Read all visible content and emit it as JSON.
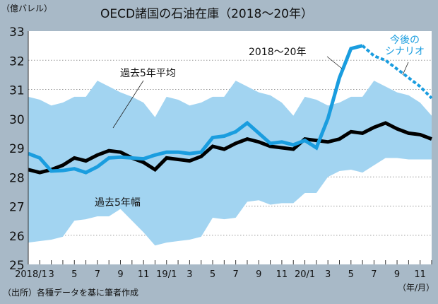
{
  "chart_data": {
    "type": "line",
    "title": "OECD諸国の石油在庫（2018〜20年）",
    "ylabel": "（億バレル）",
    "xlabel": "（年/月）",
    "source": "（出所）各種データを基に筆者作成",
    "ylim": [
      25,
      33
    ],
    "yticks": [
      25,
      26,
      27,
      28,
      29,
      30,
      31,
      32,
      33
    ],
    "grid": true,
    "x_tick_labels": [
      "2018/1",
      "3",
      "5",
      "7",
      "9",
      "11",
      "19/1",
      "3",
      "5",
      "7",
      "9",
      "11",
      "20/1",
      "3",
      "5",
      "7",
      "9",
      "11"
    ],
    "months": [
      "2018/1",
      "2018/2",
      "2018/3",
      "2018/4",
      "2018/5",
      "2018/6",
      "2018/7",
      "2018/8",
      "2018/9",
      "2018/10",
      "2018/11",
      "2018/12",
      "2019/1",
      "2019/2",
      "2019/3",
      "2019/4",
      "2019/5",
      "2019/6",
      "2019/7",
      "2019/8",
      "2019/9",
      "2019/10",
      "2019/11",
      "2019/12",
      "2020/1",
      "2020/2",
      "2020/3",
      "2020/4",
      "2020/5",
      "2020/6",
      "2020/7",
      "2020/8",
      "2020/9",
      "2020/10",
      "2020/11",
      "2020/12"
    ],
    "band": {
      "name": "過去5年幅",
      "color": "#a2d4f1",
      "upper": [
        30.75,
        30.65,
        30.45,
        30.55,
        30.75,
        30.75,
        31.3,
        31.1,
        30.9,
        30.75,
        30.55,
        30.05,
        30.75,
        30.65,
        30.45,
        30.55,
        30.75,
        30.75,
        31.3,
        31.1,
        30.9,
        30.8,
        30.55,
        30.1,
        30.75,
        30.65,
        30.45,
        30.55,
        30.75,
        30.75,
        31.3,
        31.1,
        30.9,
        30.8,
        30.55,
        30.1
      ],
      "lower": [
        25.75,
        25.8,
        25.85,
        25.95,
        26.5,
        26.55,
        26.65,
        26.65,
        26.9,
        26.5,
        26.1,
        25.65,
        25.75,
        25.8,
        25.85,
        25.95,
        26.6,
        26.55,
        26.6,
        27.15,
        27.2,
        27.05,
        27.1,
        27.1,
        27.45,
        27.45,
        28.0,
        28.2,
        28.25,
        28.15,
        28.4,
        28.65,
        28.65,
        28.6,
        28.6,
        28.6
      ]
    },
    "series": [
      {
        "name": "過去5年平均",
        "color": "#000000",
        "values": [
          28.25,
          28.15,
          28.25,
          28.4,
          28.65,
          28.55,
          28.75,
          28.9,
          28.85,
          28.65,
          28.5,
          28.25,
          28.65,
          28.6,
          28.55,
          28.7,
          29.05,
          28.95,
          29.15,
          29.3,
          29.2,
          29.05,
          29.0,
          28.95,
          29.3,
          29.25,
          29.2,
          29.3,
          29.55,
          29.5,
          29.7,
          29.85,
          29.65,
          29.5,
          29.45,
          29.3
        ]
      },
      {
        "name": "2018〜20年",
        "color": "#1a9ddf",
        "values": [
          28.8,
          28.65,
          28.2,
          28.22,
          28.28,
          28.15,
          28.35,
          28.65,
          28.68,
          28.65,
          28.62,
          28.75,
          28.85,
          28.85,
          28.8,
          28.85,
          29.35,
          29.4,
          29.55,
          29.85,
          29.5,
          29.15,
          29.2,
          29.1,
          29.25,
          29.0,
          30.0,
          31.4,
          32.4,
          32.5,
          null,
          null,
          null,
          null,
          null,
          null
        ]
      },
      {
        "name": "今後のシナリオ",
        "color": "#1a9ddf",
        "dashed": true,
        "values": [
          null,
          null,
          null,
          null,
          null,
          null,
          null,
          null,
          null,
          null,
          null,
          null,
          null,
          null,
          null,
          null,
          null,
          null,
          null,
          null,
          null,
          null,
          null,
          null,
          null,
          null,
          null,
          null,
          null,
          32.5,
          32.15,
          32.0,
          31.7,
          31.4,
          31.1,
          30.7
        ]
      }
    ],
    "annotations": {
      "avg": "過去5年平均",
      "range": "過去5年幅",
      "actual": "2018〜20年",
      "scenario_1": "今後の",
      "scenario_2": "シナリオ"
    }
  }
}
